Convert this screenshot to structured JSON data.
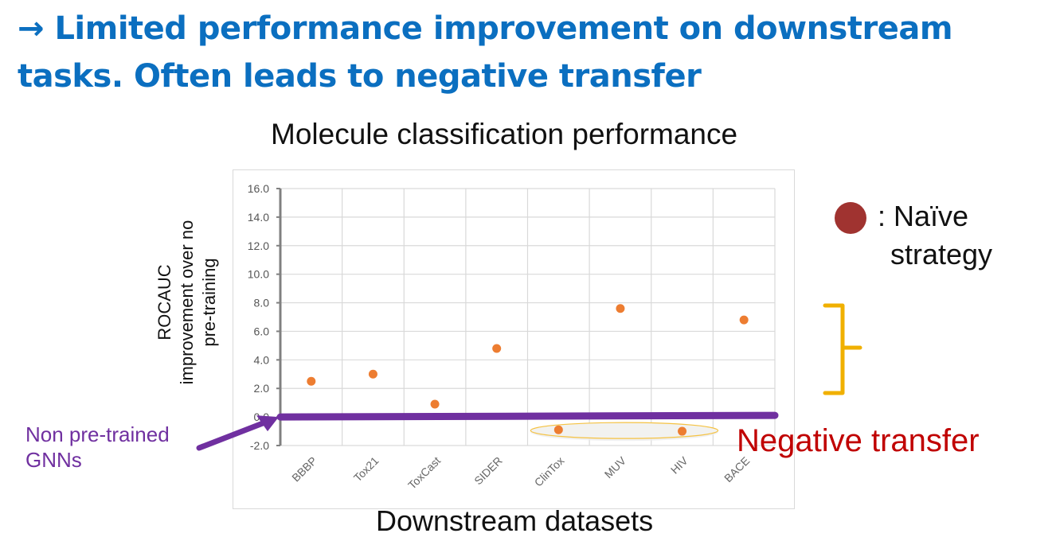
{
  "headline": {
    "line1": "→ Limited performance improvement on downstream",
    "line2": "tasks. Often leads to negative transfer"
  },
  "colors": {
    "headline": "#0b6fc0",
    "point": "#ed7d31",
    "baseline": "#7030a0",
    "legend_marker": "#a03330",
    "bracket": "#f0b000",
    "negative_label": "#c00000",
    "ellipse": "#f5c242"
  },
  "legend": {
    "marker_icon": "filled-circle",
    "line1": ": Naïve",
    "line2": "strategy"
  },
  "annotations": {
    "baseline_label_line1": "Non pre-trained",
    "baseline_label_line2": "GNNs",
    "negative_transfer": "Negative transfer"
  },
  "chart_data": {
    "type": "scatter",
    "title": "Molecule classification performance",
    "xlabel": "Downstream datasets",
    "ylabel_line1": "ROCAUC",
    "ylabel_line2": "improvement over no",
    "ylabel_line3": "pre-training",
    "categories": [
      "BBBP",
      "Tox21",
      "ToxCast",
      "SIDER",
      "ClinTox",
      "MUV",
      "HIV",
      "BACE"
    ],
    "series": [
      {
        "name": "Naïve strategy",
        "values": [
          2.5,
          3.0,
          0.9,
          4.8,
          -0.9,
          7.6,
          -1.0,
          6.8
        ]
      }
    ],
    "baseline": {
      "name": "Non pre-trained GNNs",
      "value": 0.0
    },
    "ylim": [
      -2.0,
      16.0
    ],
    "yticks": [
      "16.0",
      "14.0",
      "12.0",
      "10.0",
      "8.0",
      "6.0",
      "4.0",
      "2.0",
      "0.0",
      "-2.0"
    ],
    "ytick_values": [
      16,
      14,
      12,
      10,
      8,
      6,
      4,
      2,
      0,
      -2
    ],
    "grid": true,
    "legend_position": "right",
    "highlighted_negative": [
      "ClinTox",
      "HIV"
    ]
  }
}
